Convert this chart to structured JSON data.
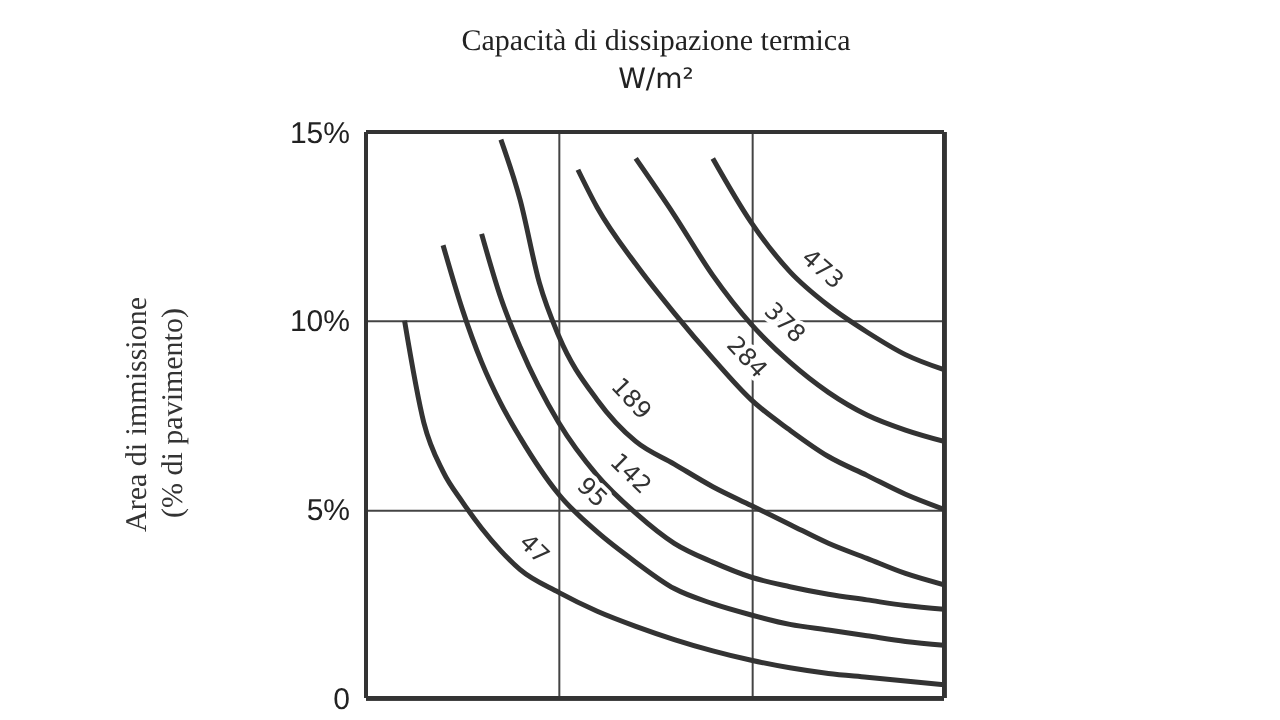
{
  "chart_data": {
    "type": "line",
    "title": "Capacità di dissipazione termica",
    "subtitle": "W/m²",
    "ylabel": "Area di immissione\n(% di pavimento)",
    "categories": [
      null,
      null,
      null,
      null,
      null,
      null,
      null,
      null,
      null,
      null,
      null,
      null,
      null,
      null,
      null,
      null,
      null,
      null,
      null,
      null,
      null,
      null,
      null,
      null,
      null,
      null,
      null,
      null,
      null,
      null,
      null
    ],
    "ylim": [
      0,
      15
    ],
    "yticks": [
      0,
      {
        "value": 5,
        "label": "5%"
      },
      {
        "value": 10,
        "label": "10%"
      },
      {
        "value": 15,
        "label": "15%"
      }
    ],
    "grid": true,
    "marker": "none",
    "line_style": "solid",
    "tick_labels": "y",
    "series": [
      {
        "name": "47",
        "color": "#333333",
        "values": [
          null,
          null,
          10,
          7.3,
          6.0,
          5.2,
          4.5,
          3.9,
          3.4,
          null,
          2.8,
          null,
          2.3,
          null,
          1.9,
          null,
          1.55,
          null,
          1.25,
          null,
          1.0,
          null,
          0.8,
          null,
          0.65,
          null,
          0.55,
          null,
          0.45,
          null,
          0.35
        ]
      },
      {
        "name": "95",
        "color": "#333333",
        "values": [
          null,
          null,
          null,
          null,
          12,
          10.3,
          8.9,
          7.8,
          6.9,
          null,
          5.4,
          null,
          4.4,
          null,
          3.6,
          null,
          2.9,
          null,
          2.5,
          null,
          2.2,
          null,
          1.95,
          null,
          1.8,
          null,
          1.65,
          null,
          1.5,
          null,
          1.4
        ]
      },
      {
        "name": "142",
        "color": "#333333",
        "values": [
          null,
          null,
          null,
          null,
          null,
          null,
          12.3,
          10.6,
          9.3,
          null,
          7.3,
          null,
          5.9,
          null,
          4.9,
          null,
          4.1,
          null,
          3.6,
          null,
          3.2,
          null,
          2.95,
          null,
          2.75,
          null,
          2.6,
          null,
          2.45,
          null,
          2.35
        ]
      },
      {
        "name": "189",
        "color": "#333333",
        "values": [
          null,
          null,
          null,
          null,
          null,
          null,
          null,
          14.8,
          13.2,
          11.0,
          9.6,
          null,
          7.9,
          null,
          6.8,
          null,
          6.2,
          null,
          5.6,
          null,
          5.1,
          null,
          4.6,
          null,
          4.1,
          null,
          3.7,
          null,
          3.3,
          null,
          3.0
        ]
      },
      {
        "name": "284",
        "color": "#333333",
        "values": [
          null,
          null,
          null,
          null,
          null,
          null,
          null,
          null,
          null,
          null,
          null,
          14,
          13.0,
          null,
          11.5,
          null,
          10.2,
          null,
          9.0,
          null,
          7.9,
          null,
          7.1,
          null,
          6.4,
          null,
          5.9,
          null,
          5.4,
          null,
          5.0
        ]
      },
      {
        "name": "378",
        "color": "#333333",
        "values": [
          null,
          null,
          null,
          null,
          null,
          null,
          null,
          null,
          null,
          null,
          null,
          null,
          null,
          null,
          14.3,
          null,
          12.8,
          null,
          11.2,
          null,
          9.9,
          null,
          8.9,
          null,
          8.1,
          null,
          7.5,
          null,
          7.1,
          null,
          6.8
        ]
      },
      {
        "name": "473",
        "color": "#333333",
        "values": [
          null,
          null,
          null,
          null,
          null,
          null,
          null,
          null,
          null,
          null,
          null,
          null,
          null,
          null,
          null,
          null,
          null,
          null,
          14.3,
          null,
          12.6,
          null,
          11.3,
          null,
          10.4,
          null,
          9.7,
          null,
          9.1,
          null,
          8.7
        ]
      }
    ]
  }
}
